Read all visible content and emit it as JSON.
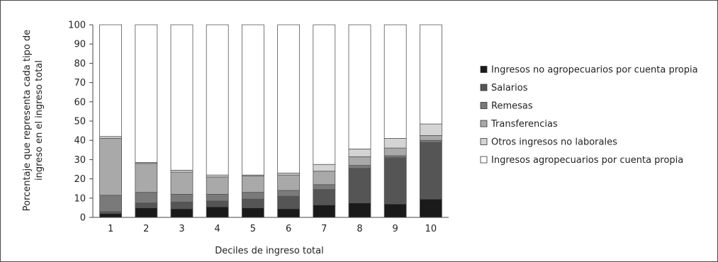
{
  "chart_data": {
    "type": "bar",
    "stacked": true,
    "categories": [
      "1",
      "2",
      "3",
      "4",
      "5",
      "6",
      "7",
      "8",
      "9",
      "10"
    ],
    "ylim": [
      0,
      100
    ],
    "yticks": [
      0,
      10,
      20,
      30,
      40,
      50,
      60,
      70,
      80,
      90,
      100
    ],
    "xlabel": "Deciles de ingreso total",
    "ylabel_lines": [
      "Porcentaje que representa cada tipo de",
      "ingreso en el ingreso total"
    ],
    "legend_position": "right",
    "grid": false,
    "series": [
      {
        "name": "Ingresos no agropecuarios por cuenta propia",
        "color": "#1a1a1a",
        "values": [
          2,
          5,
          4.5,
          5.5,
          5,
          4.5,
          6.5,
          7.5,
          7,
          9.5
        ]
      },
      {
        "name": "Salarios",
        "color": "#555555",
        "values": [
          1,
          2.5,
          3.5,
          3,
          4.5,
          6.5,
          8,
          18,
          24,
          29.5
        ]
      },
      {
        "name": "Remesas",
        "color": "#7a7a7a",
        "values": [
          8.5,
          5.5,
          4,
          3.5,
          3.5,
          3,
          2.5,
          1.5,
          1,
          1
        ]
      },
      {
        "name": "Transferencias",
        "color": "#a9a9a9",
        "values": [
          29.5,
          15,
          11.5,
          9,
          8.5,
          8,
          7,
          4.5,
          4,
          2.5
        ]
      },
      {
        "name": "Otros ingresos no laborales",
        "color": "#d4d4d4",
        "values": [
          1,
          0.5,
          1,
          1,
          0.5,
          1,
          3.5,
          4,
          5,
          6
        ]
      },
      {
        "name": "Ingresos agropecuarios por cuenta propia",
        "color": "#ffffff",
        "values": [
          58,
          71.5,
          75.5,
          78,
          78,
          77,
          72.5,
          64.5,
          59,
          51.5
        ]
      }
    ]
  }
}
